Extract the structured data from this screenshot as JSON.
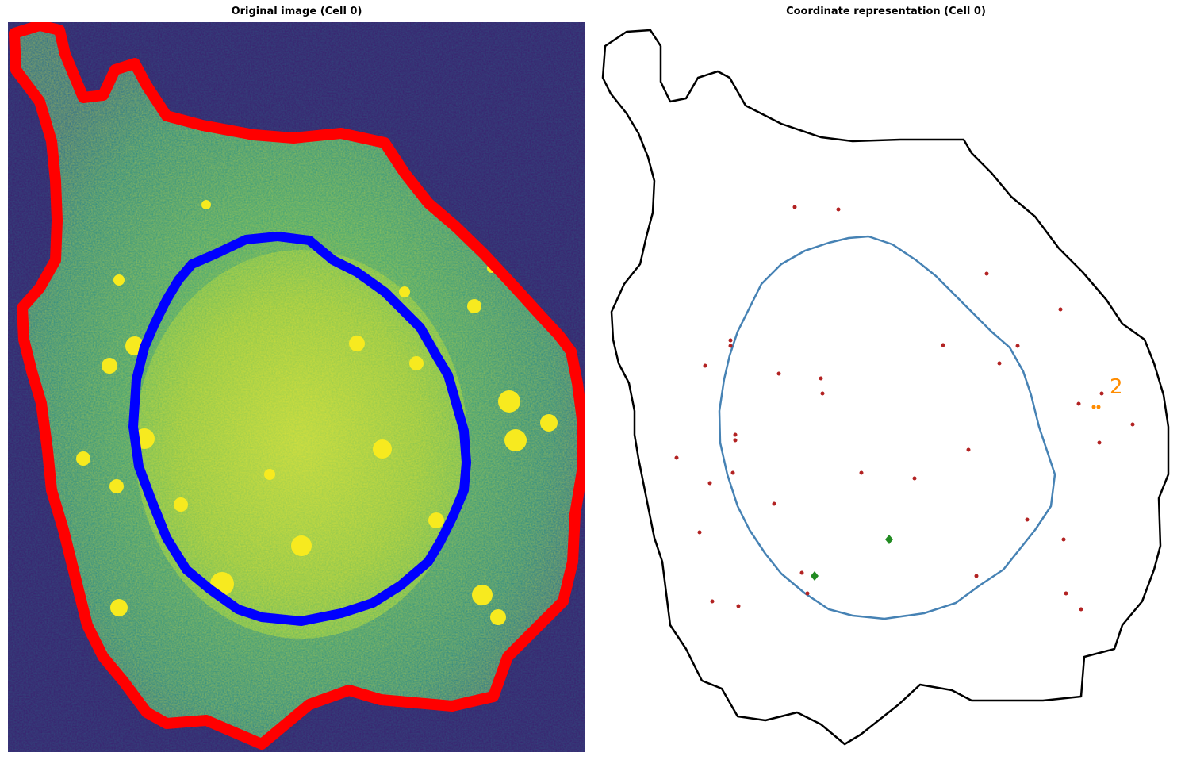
{
  "panels": {
    "left_title": "Original image (Cell 0)",
    "right_title": "Coordinate representation (Cell 0)"
  },
  "annotations": {
    "cluster_label": "2"
  },
  "colors": {
    "background_image": "#3b1f6e",
    "cell_outline_left": "#ff0000",
    "nucleus_outline_left": "#0000ff",
    "cell_outline_right": "#000000",
    "nucleus_outline_right": "#4682b4",
    "spots": "#b22222",
    "cluster_points": "#ff8c00",
    "centroids": "#228b22"
  },
  "icons": {
    "spot_marker": "dot",
    "centroid_marker": "diamond"
  }
}
